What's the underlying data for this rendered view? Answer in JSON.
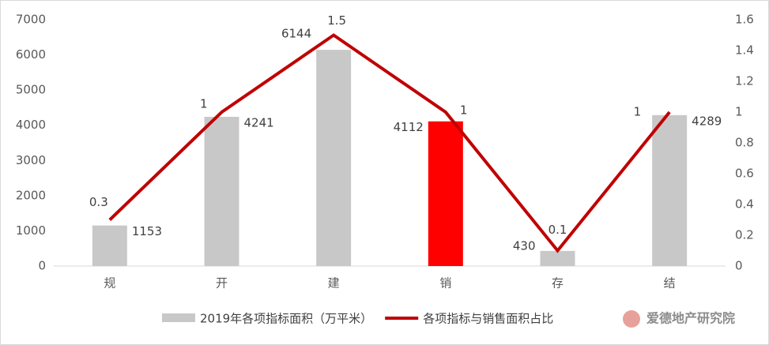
{
  "chart_data": {
    "type": "bar_line",
    "categories": [
      "规",
      "开",
      "建",
      "销",
      "存",
      "结"
    ],
    "series": [
      {
        "name": "2019年各项指标面积（万平米）",
        "type": "bar",
        "color": "#c8c8c8",
        "colors": [
          "#c8c8c8",
          "#c8c8c8",
          "#c8c8c8",
          "#ff0000",
          "#c8c8c8",
          "#c8c8c8"
        ],
        "values": [
          1153,
          4241,
          6144,
          4112,
          430,
          4289
        ]
      },
      {
        "name": "各项指标与销售面积占比",
        "type": "line",
        "color": "#c00000",
        "axis": "y2",
        "values": [
          0.3,
          1,
          1.5,
          1,
          0.1,
          1
        ]
      }
    ],
    "ylim": [
      0,
      7000
    ],
    "yticks": [
      0,
      1000,
      2000,
      3000,
      4000,
      5000,
      6000,
      7000
    ],
    "y2lim": [
      0,
      1.6
    ],
    "y2ticks": [
      0,
      0.2,
      0.4,
      0.6,
      0.8,
      1,
      1.2,
      1.4,
      1.6
    ],
    "watermark": "爱德地产研究院"
  }
}
